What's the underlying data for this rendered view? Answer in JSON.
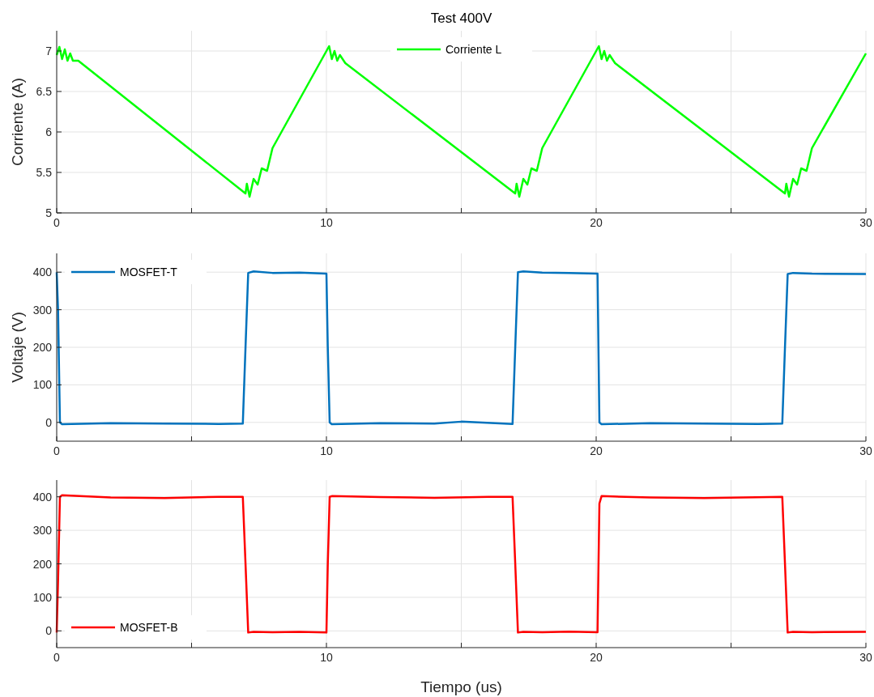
{
  "chart_data": [
    {
      "type": "line",
      "title": "Test 400V",
      "ylabel": "Corriente (A)",
      "xlim": [
        0,
        30
      ],
      "xticks": [
        0,
        {
          "value": 5,
          "label": null
        },
        10,
        {
          "value": 15,
          "label": null
        },
        20,
        {
          "value": 25,
          "label": null
        },
        30
      ],
      "ylim": [
        5,
        7.25
      ],
      "yticks": [
        5,
        5.5,
        6,
        6.5,
        7
      ],
      "grid": true,
      "legend": "top",
      "x": [
        0,
        0.1,
        0.2,
        0.3,
        0.4,
        0.5,
        0.6,
        0.8,
        7,
        7.05,
        7.15,
        7.3,
        7.45,
        7.6,
        7.8,
        8,
        10,
        10.1,
        10.2,
        10.3,
        10.4,
        10.5,
        10.7,
        17,
        17.05,
        17.15,
        17.3,
        17.45,
        17.6,
        17.8,
        18,
        20,
        20.1,
        20.2,
        20.3,
        20.4,
        20.5,
        20.7,
        27,
        27.05,
        27.15,
        27.3,
        27.45,
        27.6,
        27.8,
        28,
        30
      ],
      "series": [
        {
          "name": "Corriente L",
          "color": "#00ff00",
          "values": [
            6.95,
            7.05,
            6.9,
            7.02,
            6.88,
            6.97,
            6.88,
            6.88,
            5.24,
            5.36,
            5.2,
            5.42,
            5.35,
            5.55,
            5.52,
            5.8,
            7.0,
            7.06,
            6.9,
            7.0,
            6.88,
            6.95,
            6.85,
            5.24,
            5.36,
            5.2,
            5.42,
            5.35,
            5.55,
            5.52,
            5.8,
            7.0,
            7.06,
            6.9,
            7.0,
            6.88,
            6.95,
            6.85,
            5.24,
            5.36,
            5.2,
            5.42,
            5.35,
            5.55,
            5.52,
            5.8,
            6.97
          ]
        }
      ]
    },
    {
      "type": "line",
      "ylabel": "Voltaje (V)",
      "xlim": [
        0,
        30
      ],
      "xticks": [
        0,
        {
          "value": 5,
          "label": null
        },
        10,
        {
          "value": 15,
          "label": null
        },
        20,
        {
          "value": 25,
          "label": null
        },
        30
      ],
      "ylim": [
        -50,
        450
      ],
      "yticks": [
        0,
        100,
        200,
        300,
        400
      ],
      "grid": true,
      "legend": "top left",
      "x": [
        0,
        0.05,
        0.12,
        0.2,
        2,
        4,
        6,
        6.9,
        7.0,
        7.1,
        7.3,
        8,
        9,
        10,
        10.05,
        10.12,
        10.2,
        12,
        14,
        15,
        16.9,
        17.0,
        17.1,
        17.3,
        18,
        19,
        20.05,
        20.12,
        20.2,
        22,
        24,
        26,
        26.9,
        27.0,
        27.1,
        27.3,
        28,
        30
      ],
      "series": [
        {
          "name": "MOSFET-T",
          "color": "#0072bd",
          "values": [
            400,
            300,
            0,
            -5,
            -2,
            -3,
            -4,
            -3,
            200,
            398,
            402,
            398,
            399,
            396,
            200,
            0,
            -5,
            -2,
            -3,
            2,
            -4,
            200,
            400,
            402,
            399,
            398,
            396,
            0,
            -5,
            -2,
            -3,
            -4,
            -3,
            200,
            395,
            398,
            396,
            395
          ]
        }
      ]
    },
    {
      "type": "line",
      "xlabel": "Tiempo (us)",
      "xlim": [
        0,
        30
      ],
      "xticks": [
        0,
        {
          "value": 5,
          "label": null
        },
        10,
        {
          "value": 15,
          "label": null
        },
        20,
        {
          "value": 25,
          "label": null
        },
        30
      ],
      "ylim": [
        -50,
        450
      ],
      "yticks": [
        0,
        100,
        200,
        300,
        400
      ],
      "grid": true,
      "legend": "bottom left",
      "x": [
        0,
        0.05,
        0.12,
        0.2,
        2,
        4,
        6,
        6.9,
        7.0,
        7.1,
        7.3,
        8,
        9,
        10,
        10.05,
        10.12,
        10.2,
        12,
        14,
        16,
        16.9,
        17.0,
        17.1,
        17.3,
        18,
        19,
        20.05,
        20.12,
        20.2,
        22,
        24,
        26.9,
        27.0,
        27.1,
        27.3,
        28,
        30
      ],
      "series": [
        {
          "name": "MOSFET-B",
          "color": "#ff0000",
          "values": [
            -5,
            150,
            400,
            405,
            398,
            396,
            400,
            400,
            200,
            -5,
            -3,
            -4,
            -3,
            -5,
            200,
            400,
            402,
            399,
            397,
            400,
            400,
            200,
            -5,
            -3,
            -4,
            -2,
            -4,
            380,
            402,
            398,
            396,
            400,
            200,
            -5,
            -3,
            -4,
            -3
          ]
        }
      ]
    }
  ]
}
